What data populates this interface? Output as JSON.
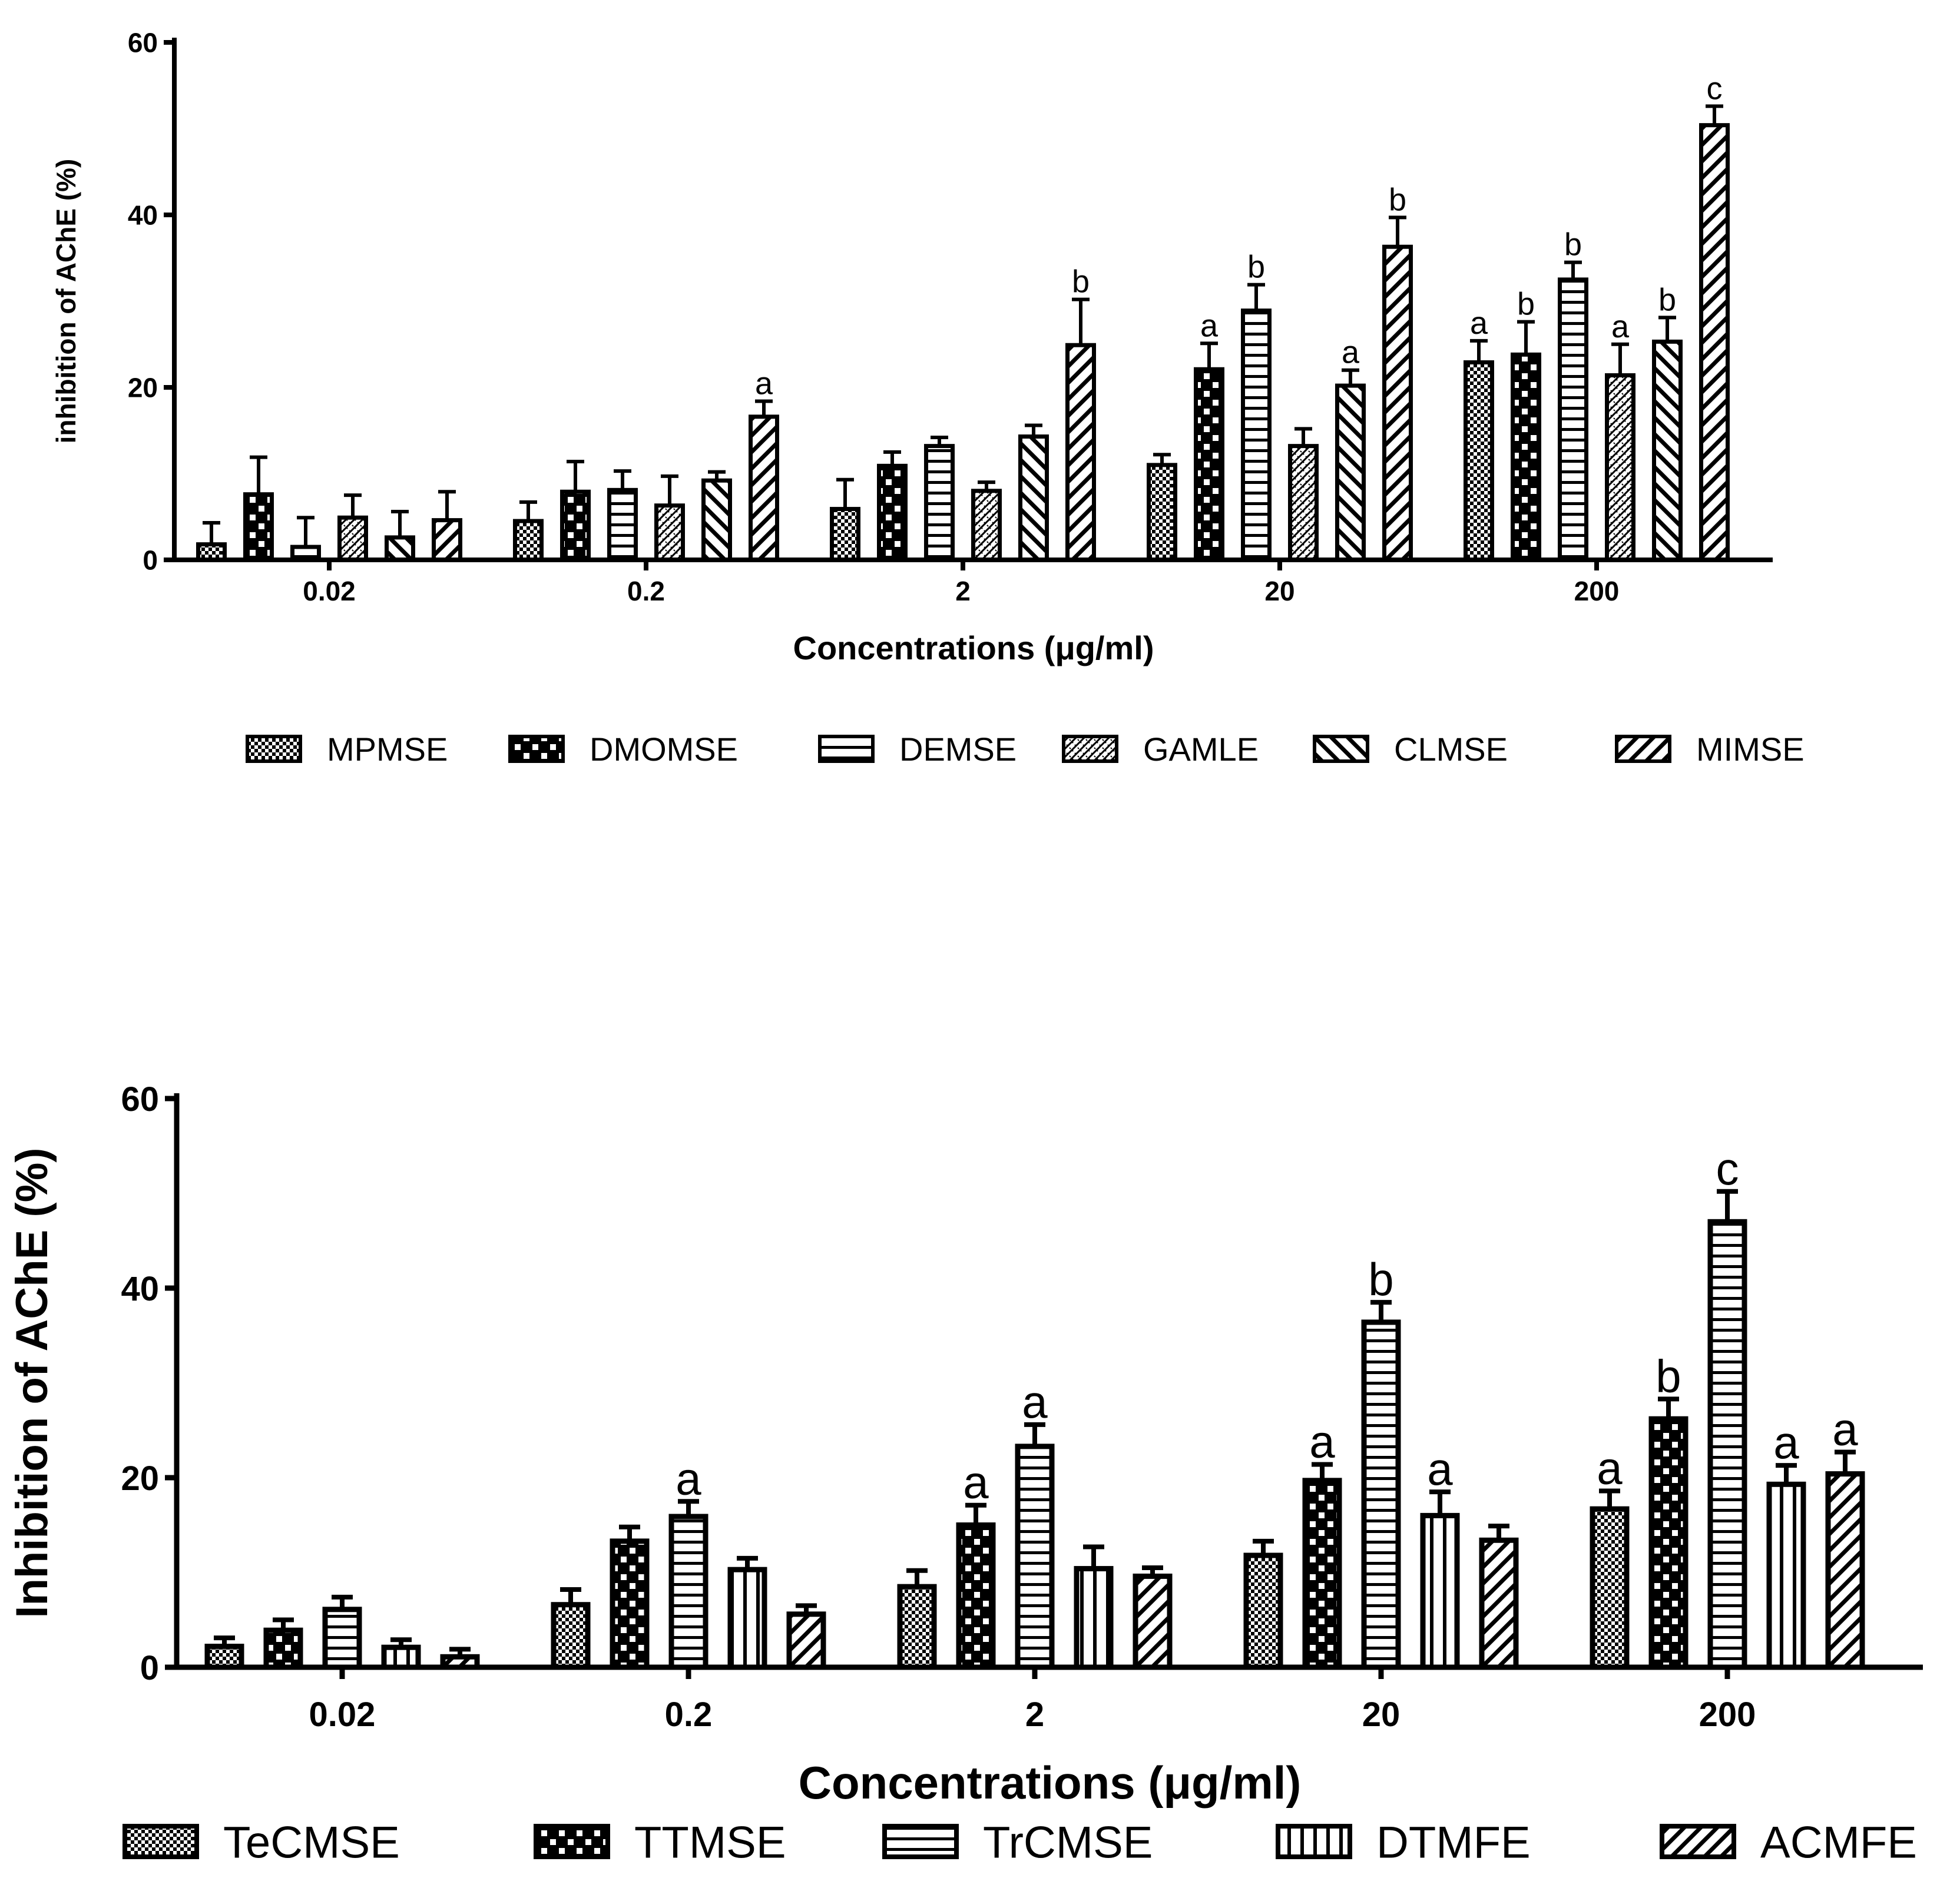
{
  "chart_data": [
    {
      "type": "bar",
      "title": "",
      "xlabel": "Concentrations (μg/ml)",
      "ylabel": "inhibition of AChE (%)",
      "ylim": [
        0,
        60
      ],
      "yticks": [
        "0",
        "20",
        "40",
        "60"
      ],
      "categories": [
        "0.02",
        "0.2",
        "2",
        "20",
        "200"
      ],
      "legend_position": "bottom",
      "series": [
        {
          "name": "MPMSE",
          "pattern": "dots",
          "values": [
            1.8,
            4.5,
            5.9,
            11.0,
            22.9
          ],
          "errors": [
            2.5,
            2.2,
            3.4,
            1.2,
            2.5
          ],
          "labels": [
            "",
            "",
            "",
            "",
            "a"
          ]
        },
        {
          "name": "DMOMSE",
          "pattern": "checker",
          "values": [
            7.6,
            7.9,
            10.9,
            22.1,
            23.8
          ],
          "errors": [
            4.3,
            3.5,
            1.6,
            3.0,
            3.8
          ],
          "labels": [
            "",
            "",
            "",
            "a",
            "b"
          ]
        },
        {
          "name": "DEMSE",
          "pattern": "hlines",
          "values": [
            1.5,
            8.1,
            13.2,
            28.9,
            32.5
          ],
          "errors": [
            3.4,
            2.2,
            1.0,
            3.0,
            2.0
          ],
          "labels": [
            "",
            "",
            "",
            "b",
            "b"
          ]
        },
        {
          "name": "GAMLE",
          "pattern": "zigzag",
          "values": [
            4.9,
            6.3,
            8.0,
            13.2,
            21.4
          ],
          "errors": [
            2.6,
            3.4,
            1.0,
            2.0,
            3.6
          ],
          "labels": [
            "",
            "",
            "",
            "",
            "a"
          ]
        },
        {
          "name": "CLMSE",
          "pattern": "bslash",
          "values": [
            2.6,
            9.2,
            14.3,
            20.2,
            25.3
          ],
          "errors": [
            3.0,
            1.0,
            1.3,
            1.8,
            2.8
          ],
          "labels": [
            "",
            "",
            "",
            "a",
            "b"
          ]
        },
        {
          "name": "MIMSE",
          "pattern": "fslash",
          "values": [
            4.6,
            16.6,
            24.9,
            36.3,
            50.4
          ],
          "errors": [
            3.3,
            1.8,
            5.3,
            3.4,
            2.2
          ],
          "labels": [
            "",
            "a",
            "b",
            "b",
            "c"
          ]
        }
      ]
    },
    {
      "type": "bar",
      "title": "",
      "xlabel": "Concentrations (μg/ml)",
      "ylabel": "Inhibition of AChE (%)",
      "ylim": [
        0,
        60
      ],
      "yticks": [
        "0",
        "20",
        "40",
        "60"
      ],
      "categories": [
        "0.02",
        "0.2",
        "2",
        "20",
        "200"
      ],
      "legend_position": "bottom",
      "series": [
        {
          "name": "TeCMSE",
          "pattern": "dots",
          "values": [
            2.2,
            6.6,
            8.5,
            11.8,
            16.7
          ],
          "errors": [
            0.9,
            1.6,
            1.7,
            1.5,
            1.9
          ],
          "labels": [
            "",
            "",
            "",
            "",
            "a"
          ]
        },
        {
          "name": "TTMSE",
          "pattern": "checker",
          "values": [
            3.9,
            13.3,
            15.0,
            19.7,
            26.2
          ],
          "errors": [
            1.1,
            1.5,
            2.1,
            1.7,
            2.1
          ],
          "labels": [
            "",
            "",
            "a",
            "a",
            "b"
          ]
        },
        {
          "name": "TrCMSE",
          "pattern": "hlines",
          "values": [
            6.1,
            15.9,
            23.3,
            36.4,
            47.0
          ],
          "errors": [
            1.3,
            1.6,
            2.3,
            2.1,
            3.2
          ],
          "labels": [
            "",
            "a",
            "a",
            "b",
            "c"
          ]
        },
        {
          "name": "DTMFE",
          "pattern": "vlines",
          "values": [
            2.1,
            10.3,
            10.4,
            16.0,
            19.3
          ],
          "errors": [
            0.8,
            1.2,
            2.3,
            2.5,
            2.0
          ],
          "labels": [
            "",
            "",
            "",
            "a",
            "a"
          ]
        },
        {
          "name": "ACMFE",
          "pattern": "fslash",
          "values": [
            1.1,
            5.6,
            9.6,
            13.4,
            20.4
          ],
          "errors": [
            0.8,
            0.9,
            0.9,
            1.5,
            2.3
          ],
          "labels": [
            "",
            "",
            "",
            "",
            "a"
          ]
        }
      ]
    }
  ]
}
